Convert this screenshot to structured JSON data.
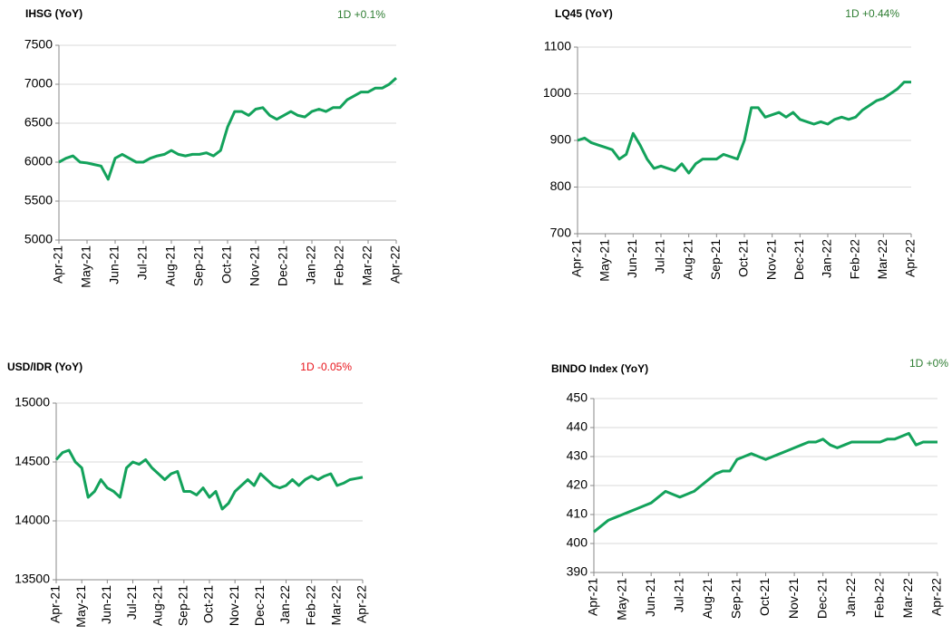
{
  "chart_data": [
    {
      "type": "line",
      "title": "IHSG (YoY)",
      "annotation": "1D +0.1%",
      "annotation_color": "#2e7d32",
      "color": "#13a25b",
      "categories": [
        "Apr-21",
        null,
        null,
        null,
        "May-21",
        null,
        null,
        null,
        "Jun-21",
        null,
        null,
        null,
        "Jul-21",
        null,
        null,
        null,
        "Aug-21",
        null,
        null,
        null,
        "Sep-21",
        null,
        null,
        null,
        "Oct-21",
        null,
        null,
        null,
        "Nov-21",
        null,
        null,
        null,
        "Dec-21",
        null,
        null,
        null,
        "Jan-22",
        null,
        null,
        null,
        "Feb-22",
        null,
        null,
        null,
        "Mar-22",
        null,
        null,
        null,
        "Apr-22"
      ],
      "values": [
        6000,
        6050,
        6080,
        6000,
        5990,
        5970,
        5950,
        5780,
        6050,
        6100,
        6050,
        6000,
        6000,
        6050,
        6080,
        6100,
        6150,
        6100,
        6080,
        6100,
        6100,
        6120,
        6080,
        6150,
        6450,
        6650,
        6650,
        6600,
        6680,
        6700,
        6600,
        6550,
        6600,
        6650,
        6600,
        6580,
        6650,
        6680,
        6650,
        6700,
        6700,
        6800,
        6850,
        6900,
        6900,
        6950,
        6950,
        7000,
        7080
      ],
      "ylim": [
        5000,
        7500
      ],
      "yticks": [
        5000,
        5500,
        6000,
        6500,
        7000,
        7500
      ],
      "grid": true
    },
    {
      "type": "line",
      "title": "LQ45 (YoY)",
      "annotation": "1D +0.44%",
      "annotation_color": "#2e7d32",
      "color": "#13a25b",
      "categories": [
        "Apr-21",
        null,
        null,
        null,
        "May-21",
        null,
        null,
        null,
        "Jun-21",
        null,
        null,
        null,
        "Jul-21",
        null,
        null,
        null,
        "Aug-21",
        null,
        null,
        null,
        "Sep-21",
        null,
        null,
        null,
        "Oct-21",
        null,
        null,
        null,
        "Nov-21",
        null,
        null,
        null,
        "Dec-21",
        null,
        null,
        null,
        "Jan-22",
        null,
        null,
        null,
        "Feb-22",
        null,
        null,
        null,
        "Mar-22",
        null,
        null,
        null,
        "Apr-22"
      ],
      "values": [
        900,
        905,
        895,
        890,
        885,
        880,
        860,
        870,
        915,
        890,
        860,
        840,
        845,
        840,
        835,
        850,
        830,
        850,
        860,
        860,
        860,
        870,
        865,
        860,
        900,
        970,
        970,
        950,
        955,
        960,
        950,
        960,
        945,
        940,
        935,
        940,
        935,
        945,
        950,
        945,
        950,
        965,
        975,
        985,
        990,
        1000,
        1010,
        1025,
        1025
      ],
      "ylim": [
        700,
        1100
      ],
      "yticks": [
        700,
        800,
        900,
        1000,
        1100
      ],
      "grid": true
    },
    {
      "type": "line",
      "title": "USD/IDR  (YoY)",
      "annotation": "1D -0.05%",
      "annotation_color": "#e8141b",
      "color": "#13a25b",
      "categories": [
        "Apr-21",
        null,
        null,
        null,
        "May-21",
        null,
        null,
        null,
        "Jun-21",
        null,
        null,
        null,
        "Jul-21",
        null,
        null,
        null,
        "Aug-21",
        null,
        null,
        null,
        "Sep-21",
        null,
        null,
        null,
        "Oct-21",
        null,
        null,
        null,
        "Nov-21",
        null,
        null,
        null,
        "Dec-21",
        null,
        null,
        null,
        "Jan-22",
        null,
        null,
        null,
        "Feb-22",
        null,
        null,
        null,
        "Mar-22",
        null,
        null,
        null,
        "Apr-22"
      ],
      "values": [
        14520,
        14580,
        14600,
        14500,
        14450,
        14200,
        14250,
        14350,
        14280,
        14250,
        14200,
        14450,
        14500,
        14480,
        14520,
        14450,
        14400,
        14350,
        14400,
        14420,
        14250,
        14250,
        14220,
        14280,
        14200,
        14250,
        14100,
        14150,
        14250,
        14300,
        14350,
        14300,
        14400,
        14350,
        14300,
        14280,
        14300,
        14350,
        14300,
        14350,
        14380,
        14350,
        14380,
        14400,
        14300,
        14320,
        14350,
        14360,
        14370
      ],
      "ylim": [
        13500,
        15000
      ],
      "yticks": [
        13500,
        14000,
        14500,
        15000
      ],
      "grid": true
    },
    {
      "type": "line",
      "title": "BINDO Index (YoY)",
      "annotation": "1D +0%",
      "annotation_color": "#2e7d32",
      "color": "#13a25b",
      "categories": [
        "Apr-21",
        null,
        null,
        null,
        "May-21",
        null,
        null,
        null,
        "Jun-21",
        null,
        null,
        null,
        "Jul-21",
        null,
        null,
        null,
        "Aug-21",
        null,
        null,
        null,
        "Sep-21",
        null,
        null,
        null,
        "Oct-21",
        null,
        null,
        null,
        "Nov-21",
        null,
        null,
        null,
        "Dec-21",
        null,
        null,
        null,
        "Jan-22",
        null,
        null,
        null,
        "Feb-22",
        null,
        null,
        null,
        "Mar-22",
        null,
        null,
        null,
        "Apr-22"
      ],
      "values": [
        404,
        406,
        408,
        409,
        410,
        411,
        412,
        413,
        414,
        416,
        418,
        417,
        416,
        417,
        418,
        420,
        422,
        424,
        425,
        425,
        429,
        430,
        431,
        430,
        429,
        430,
        431,
        432,
        433,
        434,
        435,
        435,
        436,
        434,
        433,
        434,
        435,
        435,
        435,
        435,
        435,
        436,
        436,
        437,
        438,
        434,
        435,
        435,
        435
      ],
      "ylim": [
        390,
        450
      ],
      "yticks": [
        390,
        400,
        410,
        420,
        430,
        440,
        450
      ],
      "grid": true
    }
  ]
}
